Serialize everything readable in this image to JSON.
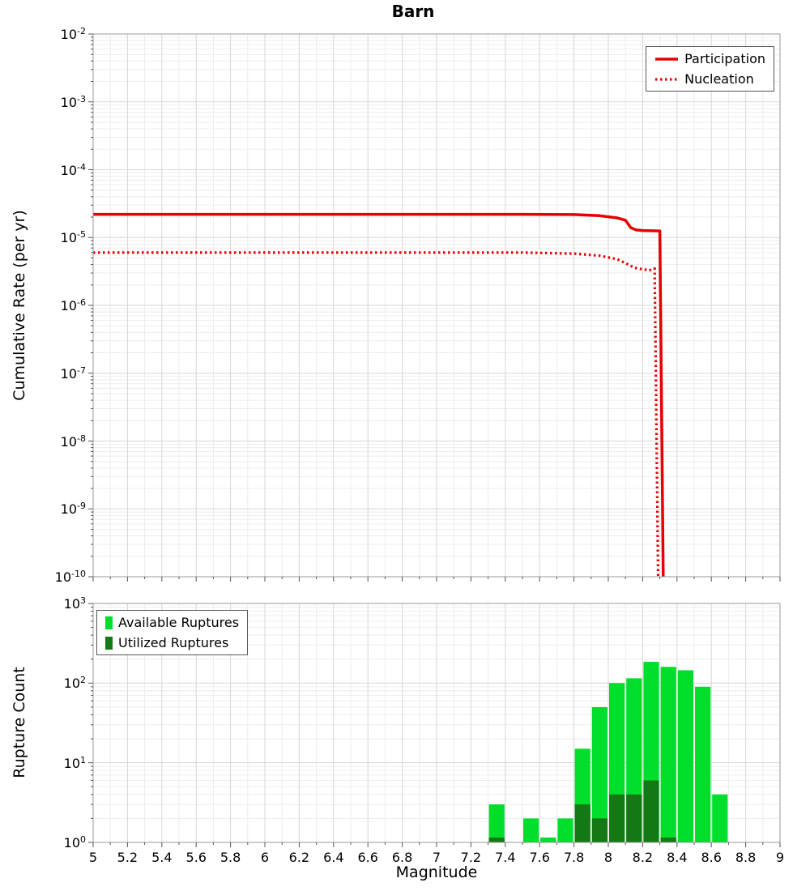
{
  "chart_data": [
    {
      "type": "line",
      "title": "Barn",
      "xlabel": "",
      "ylabel": "Cumulative Rate (per yr)",
      "xlim": [
        5,
        9
      ],
      "ylim": [
        1e-10,
        0.01
      ],
      "ylog": true,
      "xtick_step": 0.2,
      "grid": true,
      "legend_position": "top-right",
      "series": [
        {
          "name": "Participation",
          "color": "#E60000",
          "style": "solid",
          "points": [
            [
              5,
              2.2e-05
            ],
            [
              5.5,
              2.2e-05
            ],
            [
              6,
              2.2e-05
            ],
            [
              6.5,
              2.2e-05
            ],
            [
              7,
              2.2e-05
            ],
            [
              7.5,
              2.2e-05
            ],
            [
              7.8,
              2.18e-05
            ],
            [
              7.95,
              2.1e-05
            ],
            [
              8.05,
              1.95e-05
            ],
            [
              8.1,
              1.8e-05
            ],
            [
              8.13,
              1.4e-05
            ],
            [
              8.16,
              1.3e-05
            ],
            [
              8.2,
              1.27e-05
            ],
            [
              8.3,
              1.25e-05
            ],
            [
              8.32,
              1e-10
            ]
          ]
        },
        {
          "name": "Nucleation",
          "color": "#E60000",
          "style": "dotted",
          "points": [
            [
              5,
              6e-06
            ],
            [
              5.5,
              6e-06
            ],
            [
              6,
              6e-06
            ],
            [
              6.5,
              6e-06
            ],
            [
              7,
              6e-06
            ],
            [
              7.5,
              6e-06
            ],
            [
              7.8,
              5.8e-06
            ],
            [
              7.95,
              5.4e-06
            ],
            [
              8.05,
              4.8e-06
            ],
            [
              8.1,
              4.2e-06
            ],
            [
              8.15,
              3.6e-06
            ],
            [
              8.2,
              3.4e-06
            ],
            [
              8.24,
              3.3e-06
            ],
            [
              8.27,
              3.5e-06
            ],
            [
              8.29,
              1e-10
            ]
          ]
        }
      ]
    },
    {
      "type": "bar",
      "title": "",
      "xlabel": "Magnitude",
      "ylabel": "Rupture Count",
      "xlim": [
        5,
        9
      ],
      "ylim": [
        1,
        1000
      ],
      "ylog": true,
      "xtick_step": 0.2,
      "bin_width": 0.1,
      "grid": true,
      "legend_position": "top-left",
      "series": [
        {
          "name": "Available Ruptures",
          "color": "#00DE2C"
        },
        {
          "name": "Utilized Ruptures",
          "color": "#147814"
        }
      ],
      "bars": [
        {
          "mag": 7.35,
          "available": 3,
          "utilized": 1.15
        },
        {
          "mag": 7.55,
          "available": 2,
          "utilized": 0
        },
        {
          "mag": 7.65,
          "available": 1.15,
          "utilized": 0
        },
        {
          "mag": 7.75,
          "available": 2,
          "utilized": 0
        },
        {
          "mag": 7.85,
          "available": 15,
          "utilized": 3
        },
        {
          "mag": 7.95,
          "available": 50,
          "utilized": 2
        },
        {
          "mag": 8.05,
          "available": 100,
          "utilized": 4
        },
        {
          "mag": 8.15,
          "available": 115,
          "utilized": 4
        },
        {
          "mag": 8.25,
          "available": 185,
          "utilized": 6
        },
        {
          "mag": 8.35,
          "available": 160,
          "utilized": 1.15
        },
        {
          "mag": 8.45,
          "available": 145,
          "utilized": 0
        },
        {
          "mag": 8.55,
          "available": 90,
          "utilized": 0
        },
        {
          "mag": 8.65,
          "available": 4,
          "utilized": 0
        }
      ]
    }
  ]
}
